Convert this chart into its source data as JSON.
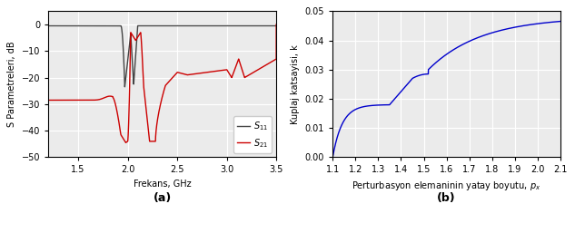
{
  "plot_a": {
    "xlabel": "Frekans, GHz",
    "ylabel": "S Parametreleri, dB",
    "xlim": [
      1.2,
      3.5
    ],
    "ylim": [
      -50,
      5
    ],
    "yticks": [
      0,
      -10,
      -20,
      -30,
      -40,
      -50
    ],
    "xticks": [
      1.5,
      2.0,
      2.5,
      3.0,
      3.5
    ],
    "legend_s11": "$S_{11}$",
    "legend_s21": "$S_{21}$",
    "color_s11": "#444444",
    "color_s21": "#cc0000",
    "label_a": "(a)"
  },
  "plot_b": {
    "xlabel": "Perturbasyon elemaninin yatay boyutu, $p_x$",
    "ylabel": "Kuplaj katsayisi, k",
    "xlim": [
      1.1,
      2.1
    ],
    "ylim": [
      0.0,
      0.05
    ],
    "yticks": [
      0.0,
      0.01,
      0.02,
      0.03,
      0.04,
      0.05
    ],
    "xticks": [
      1.1,
      1.2,
      1.3,
      1.4,
      1.5,
      1.6,
      1.7,
      1.8,
      1.9,
      2.0,
      2.1
    ],
    "color_curve": "#0000cc",
    "label_b": "(b)"
  },
  "bg_color": "#ebebeb"
}
